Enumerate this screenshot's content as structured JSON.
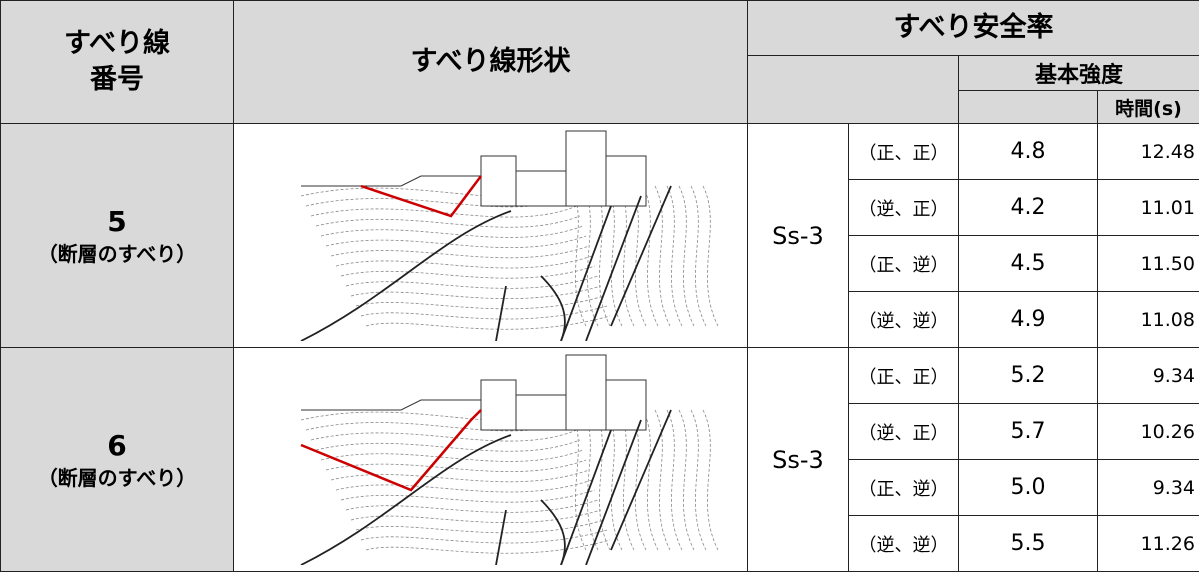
{
  "header": {
    "slip_no": [
      "すべり線",
      "番号"
    ],
    "shape": "すべり線形状",
    "safety": "すべり安全率",
    "basic": "基本強度",
    "time": "時間(s)"
  },
  "groups": [
    {
      "no": "5",
      "note": "（断層のすべり）",
      "wave": "Ss-3",
      "rows": [
        {
          "case": "（正、正）",
          "safety": "4.8",
          "time": "12.48"
        },
        {
          "case": "（逆、正）",
          "safety": "4.2",
          "time": "11.01"
        },
        {
          "case": "（正、逆）",
          "safety": "4.5",
          "time": "11.50"
        },
        {
          "case": "（逆、逆）",
          "safety": "4.9",
          "time": "11.08"
        }
      ]
    },
    {
      "no": "6",
      "note": "（断層のすべり）",
      "wave": "Ss-3",
      "rows": [
        {
          "case": "（正、正）",
          "safety": "5.2",
          "time": "9.34"
        },
        {
          "case": "（逆、正）",
          "safety": "5.7",
          "time": "10.26"
        },
        {
          "case": "（正、逆）",
          "safety": "5.0",
          "time": "9.34"
        },
        {
          "case": "（逆、逆）",
          "safety": "5.5",
          "time": "11.26"
        }
      ]
    }
  ]
}
